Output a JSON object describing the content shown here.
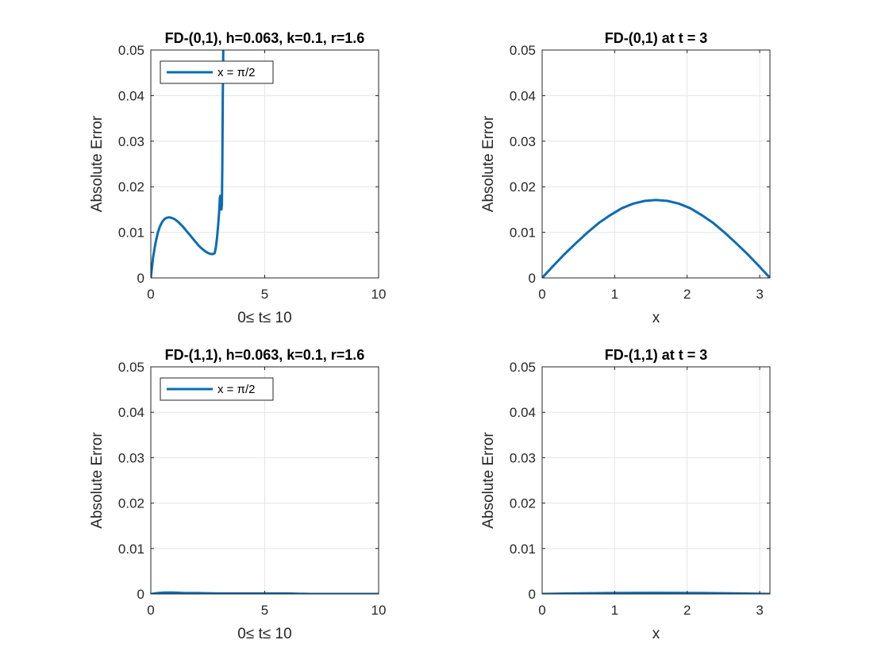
{
  "chart_data": [
    {
      "type": "line",
      "title": "FD-(0,1), h=0.063, k=0.1, r=1.6",
      "xlabel": "0≤ t≤ 10",
      "ylabel": "Absolute Error",
      "xlim": [
        0,
        10
      ],
      "ylim": [
        0,
        0.05
      ],
      "xticks": [
        0,
        5,
        10
      ],
      "xtick_labels": [
        "0",
        "5",
        "10"
      ],
      "yticks": [
        0,
        0.01,
        0.02,
        0.03,
        0.04,
        0.05
      ],
      "ytick_labels": [
        "0",
        "0.01",
        "0.02",
        "0.03",
        "0.04",
        "0.05"
      ],
      "grid": true,
      "legend_position": "top-left",
      "series": [
        {
          "name": "x = π/2",
          "color": "#0b6cb4",
          "x": [
            0,
            0.1,
            0.2,
            0.3,
            0.4,
            0.5,
            0.6,
            0.7,
            0.8,
            0.9,
            1.0,
            1.1,
            1.2,
            1.3,
            1.4,
            1.5,
            1.6,
            1.7,
            1.8,
            1.9,
            2.0,
            2.1,
            2.2,
            2.3,
            2.4,
            2.5,
            2.6,
            2.7,
            2.8,
            2.85,
            2.9,
            2.95,
            3.0,
            3.03,
            3.05,
            3.08,
            3.1,
            3.12,
            3.14,
            3.16,
            3.18,
            3.2
          ],
          "y": [
            0,
            0.0045,
            0.0075,
            0.0098,
            0.0113,
            0.0123,
            0.0129,
            0.0132,
            0.0133,
            0.0132,
            0.013,
            0.0127,
            0.0123,
            0.0118,
            0.0113,
            0.0107,
            0.0101,
            0.0095,
            0.0089,
            0.0083,
            0.0077,
            0.0071,
            0.0066,
            0.0062,
            0.0058,
            0.0055,
            0.0053,
            0.0052,
            0.0054,
            0.0065,
            0.0085,
            0.0112,
            0.0145,
            0.0175,
            0.018,
            0.016,
            0.015,
            0.016,
            0.025,
            0.04,
            0.05,
            0.055
          ]
        }
      ]
    },
    {
      "type": "line",
      "title": "FD-(0,1) at t = 3",
      "xlabel": "x",
      "ylabel": "Absolute Error",
      "xlim": [
        0,
        3.14159
      ],
      "ylim": [
        0,
        0.05
      ],
      "xticks": [
        0,
        1,
        2,
        3
      ],
      "xtick_labels": [
        "0",
        "1",
        "2",
        "3"
      ],
      "yticks": [
        0,
        0.01,
        0.02,
        0.03,
        0.04,
        0.05
      ],
      "ytick_labels": [
        "0",
        "0.01",
        "0.02",
        "0.03",
        "0.04",
        "0.05"
      ],
      "grid": true,
      "series": [
        {
          "color": "#0b6cb4",
          "x": [
            0,
            0.157,
            0.314,
            0.471,
            0.628,
            0.785,
            0.942,
            1.1,
            1.257,
            1.414,
            1.571,
            1.728,
            1.885,
            2.042,
            2.199,
            2.356,
            2.513,
            2.67,
            2.827,
            2.985,
            3.142
          ],
          "y": [
            0,
            0.0027,
            0.0053,
            0.0077,
            0.01,
            0.0121,
            0.0138,
            0.0153,
            0.0163,
            0.0169,
            0.0171,
            0.0169,
            0.0163,
            0.0153,
            0.0138,
            0.0121,
            0.01,
            0.0077,
            0.0053,
            0.0027,
            0
          ]
        }
      ]
    },
    {
      "type": "line",
      "title": "FD-(1,1), h=0.063, k=0.1, r=1.6",
      "xlabel": "0≤ t≤ 10",
      "ylabel": "Absolute Error",
      "xlim": [
        0,
        10
      ],
      "ylim": [
        0,
        0.05
      ],
      "xticks": [
        0,
        5,
        10
      ],
      "xtick_labels": [
        "0",
        "5",
        "10"
      ],
      "yticks": [
        0,
        0.01,
        0.02,
        0.03,
        0.04,
        0.05
      ],
      "ytick_labels": [
        "0",
        "0.01",
        "0.02",
        "0.03",
        "0.04",
        "0.05"
      ],
      "grid": true,
      "legend_position": "top-left",
      "series": [
        {
          "name": "x = π/2",
          "color": "#0b6cb4",
          "x": [
            0,
            0.3,
            0.6,
            1.0,
            1.5,
            2.0,
            3.0,
            4.0,
            5.0,
            6.0,
            7.0,
            8.0,
            9.0,
            10.0
          ],
          "y": [
            0,
            0.0002,
            0.0003,
            0.0003,
            0.0002,
            0.0002,
            0.0001,
            0.0001,
            0.0001,
            0.0001,
            0.0,
            0.0,
            0.0,
            0.0
          ]
        }
      ]
    },
    {
      "type": "line",
      "title": "FD-(1,1) at t = 3",
      "xlabel": "x",
      "ylabel": "Absolute Error",
      "xlim": [
        0,
        3.14159
      ],
      "ylim": [
        0,
        0.05
      ],
      "xticks": [
        0,
        1,
        2,
        3
      ],
      "xtick_labels": [
        "0",
        "1",
        "2",
        "3"
      ],
      "yticks": [
        0,
        0.01,
        0.02,
        0.03,
        0.04,
        0.05
      ],
      "ytick_labels": [
        "0",
        "0.01",
        "0.02",
        "0.03",
        "0.04",
        "0.05"
      ],
      "grid": true,
      "series": [
        {
          "color": "#0b6cb4",
          "x": [
            0,
            0.393,
            0.785,
            1.178,
            1.571,
            1.963,
            2.356,
            2.749,
            3.142
          ],
          "y": [
            0,
            0.0001,
            0.00018,
            0.00022,
            0.00024,
            0.00022,
            0.00018,
            0.0001,
            0
          ]
        }
      ]
    }
  ]
}
